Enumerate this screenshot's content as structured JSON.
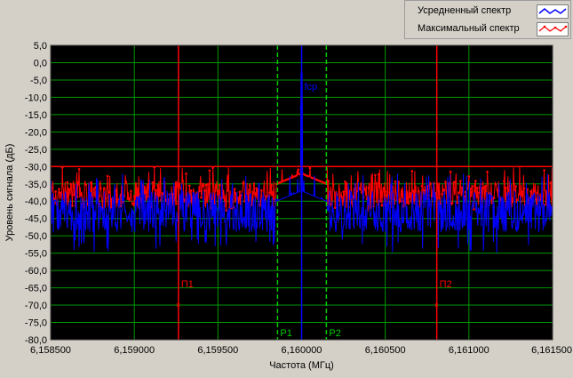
{
  "legend": {
    "items": [
      {
        "label": "Усредненный спектр",
        "color": "#0000ff",
        "icon": "blue-line-icon"
      },
      {
        "label": "Максимальный спектр",
        "color": "#ff0000",
        "icon": "red-line-markers-icon"
      }
    ]
  },
  "chart_data": {
    "type": "line",
    "title": "",
    "xlabel": "Частота (МГц)",
    "ylabel": "Уровень сигнала (дБ)",
    "xlim": [
      6.1585,
      6.1615
    ],
    "ylim": [
      -80,
      5
    ],
    "x_ticks": [
      6.1585,
      6.159,
      6.1595,
      6.16,
      6.1605,
      6.161,
      6.1615
    ],
    "x_tick_labels": [
      "6,158500",
      "6,159000",
      "6,159500",
      "6,160000",
      "6,160500",
      "6,161000",
      "6,161500"
    ],
    "y_ticks": [
      5,
      0,
      -5,
      -10,
      -15,
      -20,
      -25,
      -30,
      -35,
      -40,
      -45,
      -50,
      -55,
      -60,
      -65,
      -70,
      -75,
      -80
    ],
    "y_tick_labels": [
      "5,0",
      "0,0",
      "-5,0",
      "-10,0",
      "-15,0",
      "-20,0",
      "-25,0",
      "-30,0",
      "-35,0",
      "-40,0",
      "-45,0",
      "-50,0",
      "-55,0",
      "-60,0",
      "-65,0",
      "-70,0",
      "-75,0",
      "-80,0"
    ],
    "grid": true,
    "background": "#000000",
    "grid_color": "#009900",
    "series": [
      {
        "name": "Усредненный спектр",
        "color": "#0000ff",
        "noise_floor": -43,
        "noise_low": -55,
        "noise_high": -35,
        "peak": {
          "x": 6.16,
          "y": -3
        }
      },
      {
        "name": "Максимальный спектр",
        "color": "#ff0000",
        "noise_floor": -38,
        "noise_low": -43,
        "noise_high": -33,
        "peak": {
          "x": 6.16,
          "y": -28
        }
      }
    ],
    "reference_line": {
      "y": -30,
      "color": "#ff0000"
    },
    "markers": [
      {
        "label": "П1",
        "x": 6.159264,
        "y": -70,
        "color": "#ff0000",
        "style": "solid"
      },
      {
        "label": "П2",
        "x": 6.160808,
        "y": -70,
        "color": "#ff0000",
        "style": "solid"
      },
      {
        "label": "P1",
        "x": 6.159856,
        "y": -80,
        "color": "#00cc00",
        "style": "dashed"
      },
      {
        "label": "P2",
        "x": 6.160148,
        "y": -80,
        "color": "#00cc00",
        "style": "dashed"
      },
      {
        "label": "fcp",
        "x": 6.16,
        "y": -13,
        "color": "#0000ff",
        "style": "solid"
      }
    ]
  }
}
